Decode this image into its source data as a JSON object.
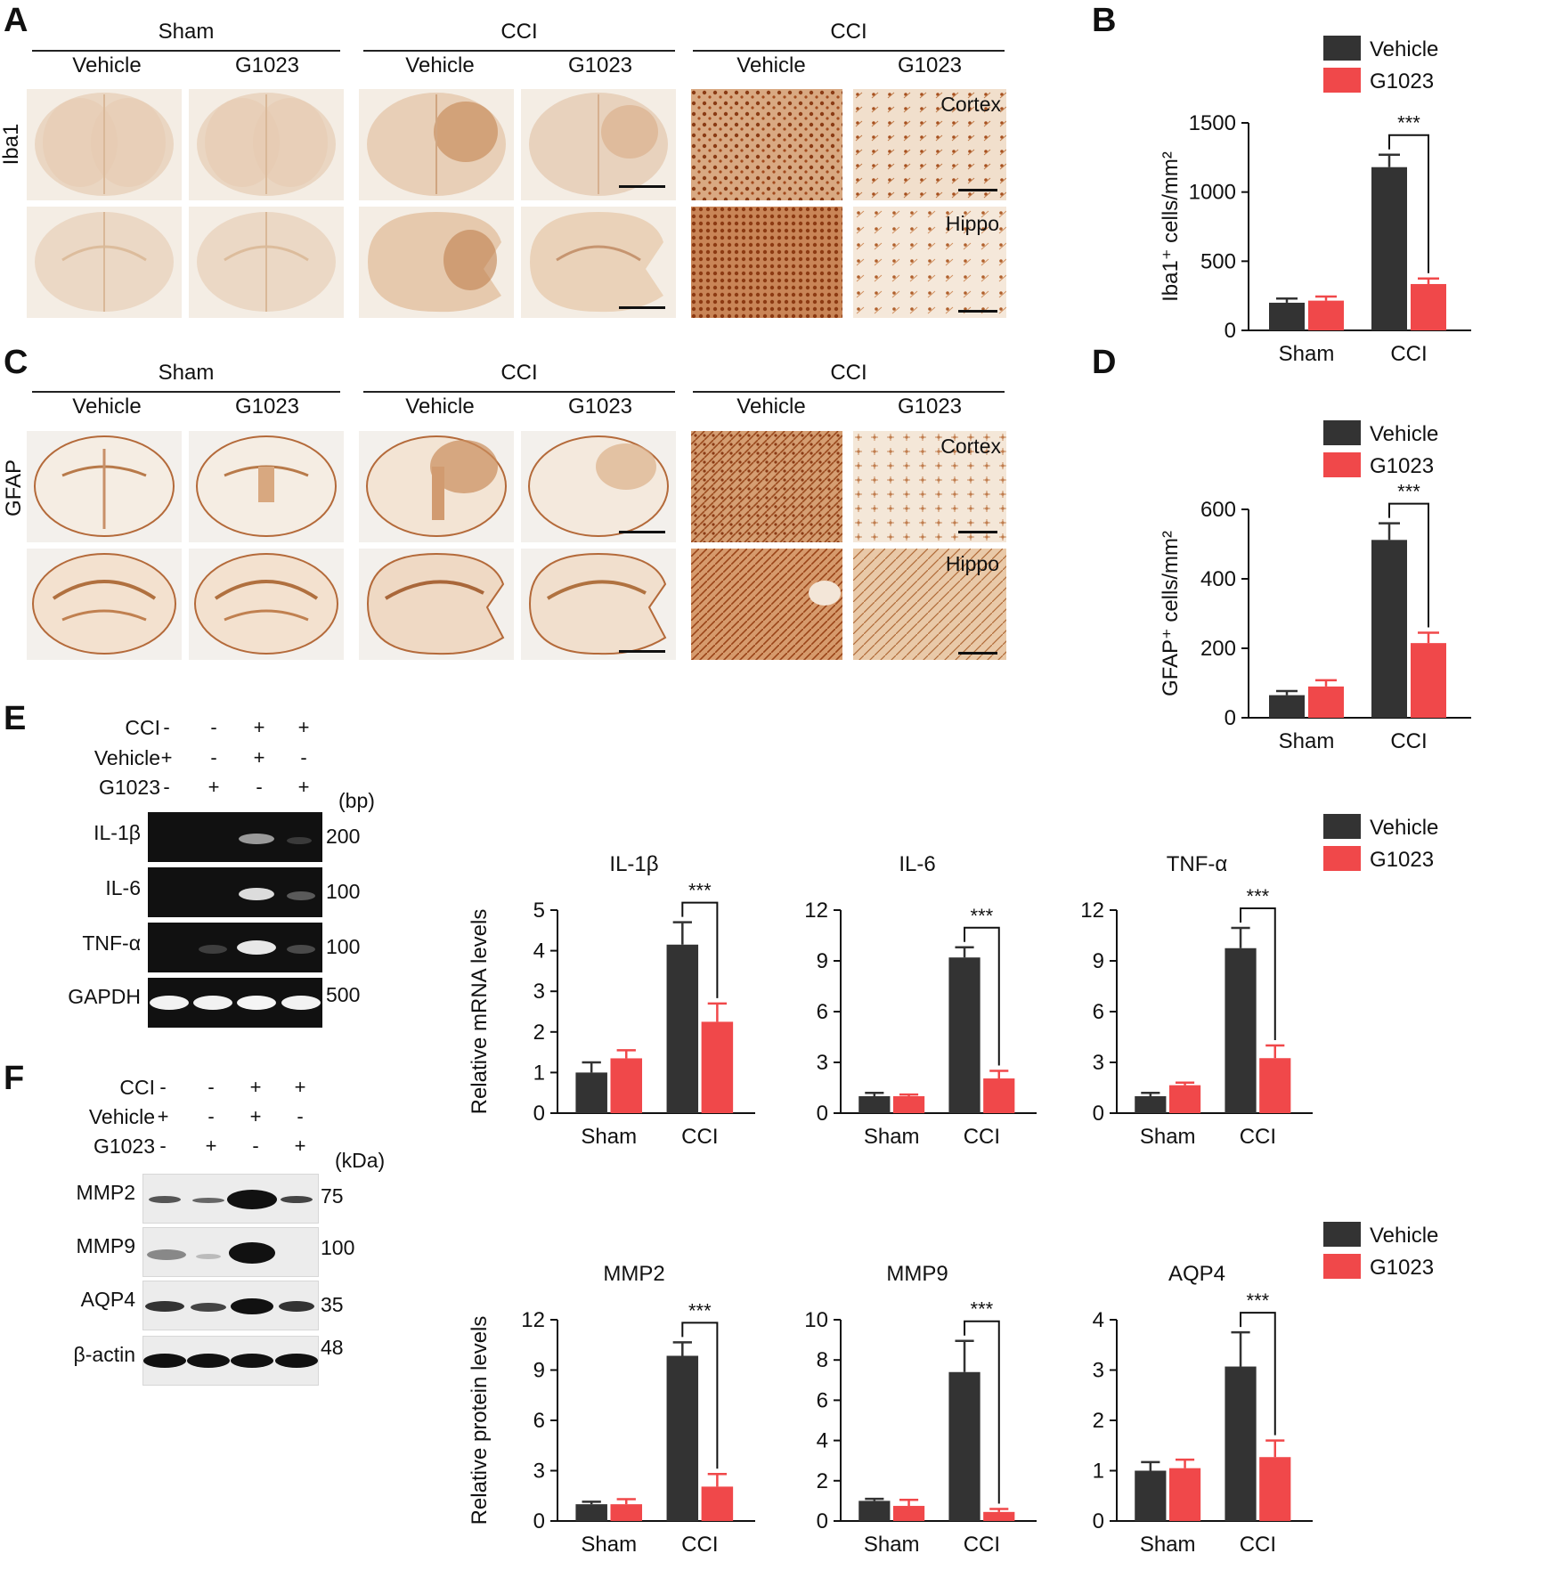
{
  "panel_letters": {
    "A": "A",
    "B": "B",
    "C": "C",
    "D": "D",
    "E": "E",
    "F": "F"
  },
  "panelA": {
    "group_headers": [
      "Sham",
      "CCI",
      "CCI"
    ],
    "sub_headers": [
      "Vehicle",
      "G1023",
      "Vehicle",
      "G1023",
      "Vehicle",
      "G1023"
    ],
    "row_label": "Iba1",
    "region_labels": [
      "Cortex",
      "Hippo"
    ]
  },
  "panelC": {
    "group_headers": [
      "Sham",
      "CCI",
      "CCI"
    ],
    "sub_headers": [
      "Vehicle",
      "G1023",
      "Vehicle",
      "G1023",
      "Vehicle",
      "G1023"
    ],
    "row_label": "GFAP",
    "region_labels": [
      "Cortex",
      "Hippo"
    ]
  },
  "panelE": {
    "lane_rows": [
      {
        "label": "CCI",
        "marks": [
          "-",
          "-",
          "+",
          "+"
        ]
      },
      {
        "label": "Vehicle",
        "marks": [
          "+",
          "-",
          "+",
          "-"
        ]
      },
      {
        "label": "G1023",
        "marks": [
          "-",
          "+",
          "-",
          "+"
        ]
      }
    ],
    "unit": "(bp)",
    "bands": [
      {
        "label": "IL-1β",
        "size": "200"
      },
      {
        "label": "IL-6",
        "size": "100"
      },
      {
        "label": "TNF-α",
        "size": "100"
      },
      {
        "label": "GAPDH",
        "size": "500"
      }
    ]
  },
  "panelF": {
    "lane_rows": [
      {
        "label": "CCI",
        "marks": [
          "-",
          "-",
          "+",
          "+"
        ]
      },
      {
        "label": "Vehicle",
        "marks": [
          "+",
          "-",
          "+",
          "-"
        ]
      },
      {
        "label": "G1023",
        "marks": [
          "-",
          "+",
          "-",
          "+"
        ]
      }
    ],
    "unit": "(kDa)",
    "bands": [
      {
        "label": "MMP2",
        "size": "75"
      },
      {
        "label": "MMP9",
        "size": "100"
      },
      {
        "label": "AQP4",
        "size": "35"
      },
      {
        "label": "β-actin",
        "size": "48"
      }
    ]
  },
  "colors": {
    "vehicle": "#333333",
    "g1023": "#f0484a"
  },
  "chart_data": [
    {
      "id": "B",
      "type": "bar",
      "title": "",
      "categories": [
        "Sham",
        "CCI"
      ],
      "series": [
        {
          "name": "Vehicle",
          "values": [
            200,
            1180
          ],
          "errors": [
            30,
            90
          ]
        },
        {
          "name": "G1023",
          "values": [
            215,
            335
          ],
          "errors": [
            30,
            40
          ]
        }
      ],
      "ylabel": "Iba1⁺ cells/mm²",
      "ylim": [
        0,
        1500
      ],
      "yticks": [
        0,
        500,
        1000,
        1500
      ],
      "significance": "***",
      "legend": "top"
    },
    {
      "id": "D",
      "type": "bar",
      "title": "",
      "categories": [
        "Sham",
        "CCI"
      ],
      "series": [
        {
          "name": "Vehicle",
          "values": [
            65,
            512
          ],
          "errors": [
            12,
            48
          ]
        },
        {
          "name": "G1023",
          "values": [
            90,
            215
          ],
          "errors": [
            18,
            30
          ]
        }
      ],
      "ylabel": "GFAP⁺ cells/mm²",
      "ylim": [
        0,
        600
      ],
      "yticks": [
        0,
        200,
        400,
        600
      ],
      "significance": "***",
      "legend": "top"
    },
    {
      "id": "E1",
      "type": "bar",
      "title": "IL-1β",
      "categories": [
        "Sham",
        "CCI"
      ],
      "series": [
        {
          "name": "Vehicle",
          "values": [
            1.0,
            4.15
          ],
          "errors": [
            0.25,
            0.55
          ]
        },
        {
          "name": "G1023",
          "values": [
            1.35,
            2.25
          ],
          "errors": [
            0.2,
            0.45
          ]
        }
      ],
      "ylabel": "Relative mRNA levels",
      "ylim": [
        0,
        5
      ],
      "yticks": [
        0,
        1,
        2,
        3,
        4,
        5
      ],
      "significance": "***"
    },
    {
      "id": "E2",
      "type": "bar",
      "title": "IL-6",
      "categories": [
        "Sham",
        "CCI"
      ],
      "series": [
        {
          "name": "Vehicle",
          "values": [
            1.0,
            9.2
          ],
          "errors": [
            0.2,
            0.6
          ]
        },
        {
          "name": "G1023",
          "values": [
            1.0,
            2.05
          ],
          "errors": [
            0.1,
            0.45
          ]
        }
      ],
      "ylabel": "",
      "ylim": [
        0,
        12
      ],
      "yticks": [
        0,
        3,
        6,
        9,
        12
      ],
      "significance": "***"
    },
    {
      "id": "E3",
      "type": "bar",
      "title": "TNF-α",
      "categories": [
        "Sham",
        "CCI"
      ],
      "series": [
        {
          "name": "Vehicle",
          "values": [
            1.0,
            9.75
          ],
          "errors": [
            0.2,
            1.2
          ]
        },
        {
          "name": "G1023",
          "values": [
            1.65,
            3.25
          ],
          "errors": [
            0.15,
            0.75
          ]
        }
      ],
      "ylabel": "",
      "ylim": [
        0,
        12
      ],
      "yticks": [
        0,
        3,
        6,
        9,
        12
      ],
      "significance": "***",
      "legend": "top-right"
    },
    {
      "id": "F1",
      "type": "bar",
      "title": "MMP2",
      "categories": [
        "Sham",
        "CCI"
      ],
      "series": [
        {
          "name": "Vehicle",
          "values": [
            1.0,
            9.85
          ],
          "errors": [
            0.15,
            0.8
          ]
        },
        {
          "name": "G1023",
          "values": [
            1.0,
            2.05
          ],
          "errors": [
            0.3,
            0.75
          ]
        }
      ],
      "ylabel": "Relative protein levels",
      "ylim": [
        0,
        12
      ],
      "yticks": [
        0,
        3,
        6,
        9,
        12
      ],
      "significance": "***"
    },
    {
      "id": "F2",
      "type": "bar",
      "title": "MMP9",
      "categories": [
        "Sham",
        "CCI"
      ],
      "series": [
        {
          "name": "Vehicle",
          "values": [
            1.0,
            7.4
          ],
          "errors": [
            0.1,
            1.55
          ]
        },
        {
          "name": "G1023",
          "values": [
            0.75,
            0.45
          ],
          "errors": [
            0.3,
            0.15
          ]
        }
      ],
      "ylabel": "",
      "ylim": [
        0,
        10
      ],
      "yticks": [
        0,
        2,
        4,
        6,
        8,
        10
      ],
      "significance": "***"
    },
    {
      "id": "F3",
      "type": "bar",
      "title": "AQP4",
      "categories": [
        "Sham",
        "CCI"
      ],
      "series": [
        {
          "name": "Vehicle",
          "values": [
            1.0,
            3.07
          ],
          "errors": [
            0.17,
            0.68
          ]
        },
        {
          "name": "G1023",
          "values": [
            1.05,
            1.27
          ],
          "errors": [
            0.17,
            0.33
          ]
        }
      ],
      "ylabel": "",
      "ylim": [
        0,
        4
      ],
      "yticks": [
        0,
        1,
        2,
        3,
        4
      ],
      "significance": "***",
      "legend": "top-right"
    }
  ]
}
